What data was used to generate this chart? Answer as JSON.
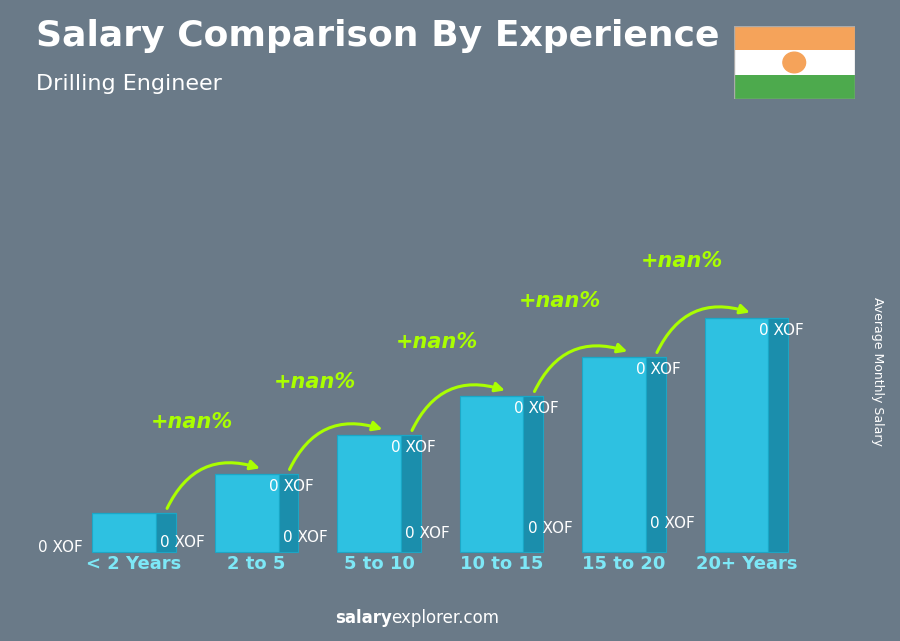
{
  "title": "Salary Comparison By Experience",
  "subtitle": "Drilling Engineer",
  "ylabel": "Average Monthly Salary",
  "watermark_bold": "salary",
  "watermark_normal": "explorer.com",
  "categories": [
    "< 2 Years",
    "2 to 5",
    "5 to 10",
    "10 to 15",
    "15 to 20",
    "20+ Years"
  ],
  "values": [
    1,
    2,
    3,
    4,
    5,
    6
  ],
  "bar_front_color": "#29c8ea",
  "bar_side_color": "#1490b0",
  "bar_top_color": "#80e0f5",
  "bar_labels": [
    "0 XOF",
    "0 XOF",
    "0 XOF",
    "0 XOF",
    "0 XOF",
    "0 XOF"
  ],
  "increase_labels": [
    "+nan%",
    "+nan%",
    "+nan%",
    "+nan%",
    "+nan%"
  ],
  "title_color": "#ffffff",
  "subtitle_color": "#ffffff",
  "increase_color": "#aaff00",
  "bar_label_color": "#ffffff",
  "bg_color": "#6a7a88",
  "flag_orange": "#f5a35a",
  "flag_white": "#ffffff",
  "flag_green": "#4daa4d",
  "flag_circle": "#f5a35a",
  "title_fontsize": 26,
  "subtitle_fontsize": 16,
  "category_fontsize": 13,
  "bar_label_fontsize": 11,
  "increase_fontsize": 15,
  "ylabel_fontsize": 9,
  "watermark_fontsize": 12
}
